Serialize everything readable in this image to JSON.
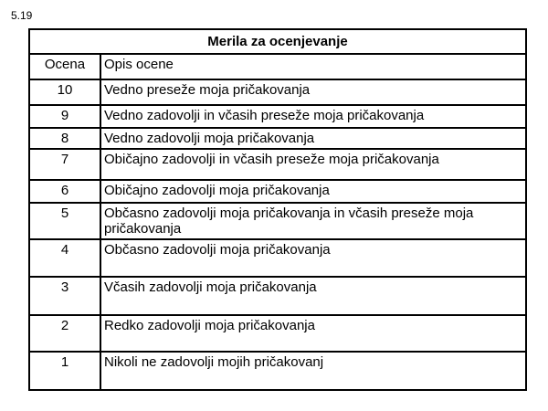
{
  "section_number": "5.19",
  "table": {
    "title": "Merila za ocenjevanje",
    "headers": [
      "Ocena",
      "Opis ocene"
    ],
    "rows": [
      {
        "grade": "10",
        "description": "Vedno preseže moja pričakovanja"
      },
      {
        "grade": "9",
        "description": "Vedno zadovolji in včasih preseže moja pričakovanja"
      },
      {
        "grade": "8",
        "description": "Vedno zadovolji moja pričakovanja"
      },
      {
        "grade": "7",
        "description": "Običajno zadovolji in včasih preseže moja pričakovanja"
      },
      {
        "grade": "6",
        "description": "Običajno zadovolji moja pričakovanja"
      },
      {
        "grade": "5",
        "description": "Občasno zadovolji moja pričakovanja in včasih preseže moja pričakovanja"
      },
      {
        "grade": "4",
        "description": "Občasno zadovolji moja pričakovanja"
      },
      {
        "grade": "3",
        "description": "Včasih zadovolji moja pričakovanja"
      },
      {
        "grade": "2",
        "description": "Redko zadovolji moja pričakovanja"
      },
      {
        "grade": "1",
        "description": "Nikoli ne zadovolji mojih pričakovanj"
      }
    ]
  }
}
